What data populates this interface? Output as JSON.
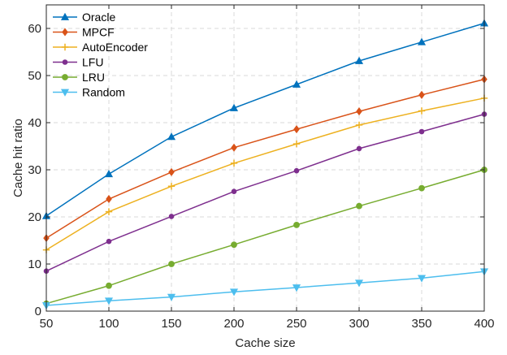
{
  "chart_data": {
    "type": "line",
    "title": "",
    "xlabel": "Cache size",
    "ylabel": "Cache hit ratio",
    "x": [
      50,
      100,
      150,
      200,
      250,
      300,
      350,
      400
    ],
    "xlim": [
      50,
      400
    ],
    "ylim": [
      0,
      65
    ],
    "xticks": [
      "50",
      "100",
      "150",
      "200",
      "250",
      "300",
      "350",
      "400"
    ],
    "yticks": [
      "0",
      "10",
      "20",
      "30",
      "40",
      "50",
      "60"
    ],
    "grid": true,
    "legend_position": "top-left",
    "series": [
      {
        "name": "Oracle",
        "color": "#0072BD",
        "marker": "triangle-up",
        "values": [
          20.2,
          29.1,
          37.0,
          43.1,
          48.1,
          53.1,
          57.1,
          61.1
        ]
      },
      {
        "name": "MPCF",
        "color": "#D95319",
        "marker": "diamond",
        "values": [
          15.5,
          23.8,
          29.5,
          34.7,
          38.6,
          42.4,
          45.9,
          49.2
        ]
      },
      {
        "name": "AutoEncoder",
        "color": "#EDB120",
        "marker": "plus",
        "values": [
          13.0,
          21.1,
          26.5,
          31.4,
          35.5,
          39.5,
          42.5,
          45.2
        ]
      },
      {
        "name": "LFU",
        "color": "#7E2F8E",
        "marker": "dot",
        "values": [
          8.5,
          14.8,
          20.1,
          25.4,
          29.8,
          34.5,
          38.1,
          41.8
        ]
      },
      {
        "name": "LRU",
        "color": "#77AC30",
        "marker": "circle",
        "values": [
          1.6,
          5.4,
          10.0,
          14.1,
          18.3,
          22.3,
          26.1,
          30.0
        ]
      },
      {
        "name": "Random",
        "color": "#4DBEEE",
        "marker": "triangle-down",
        "values": [
          1.2,
          2.2,
          3.0,
          4.1,
          5.0,
          6.0,
          7.0,
          8.4
        ]
      }
    ]
  }
}
